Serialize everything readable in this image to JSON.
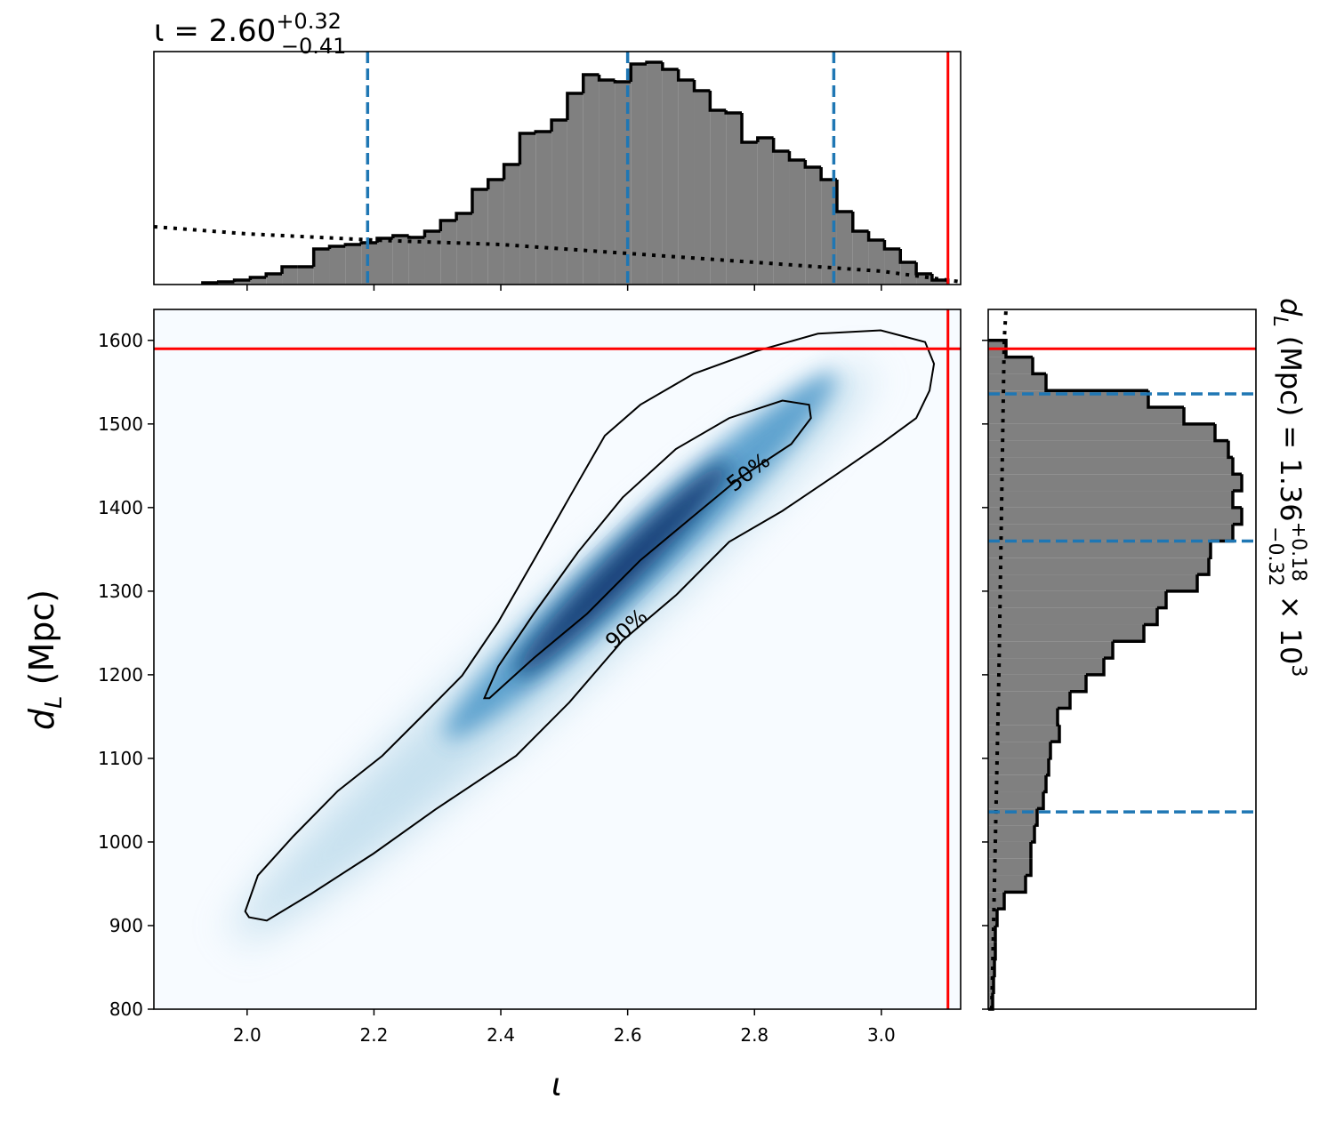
{
  "chart_data": [
    {
      "type": "histogram",
      "orientation": "vertical",
      "title": {
        "main": "ι = 2.60",
        "upper": "+0.32",
        "lower": "−0.41"
      },
      "bins": [
        1.93,
        1.955,
        1.98,
        2.005,
        2.03,
        2.055,
        2.08,
        2.105,
        2.13,
        2.155,
        2.18,
        2.205,
        2.23,
        2.255,
        2.28,
        2.305,
        2.33,
        2.355,
        2.38,
        2.405,
        2.43,
        2.455,
        2.48,
        2.505,
        2.53,
        2.555,
        2.58,
        2.605,
        2.63,
        2.655,
        2.68,
        2.705,
        2.73,
        2.755,
        2.78,
        2.805,
        2.83,
        2.855,
        2.88,
        2.905,
        2.93,
        2.955,
        2.98,
        3.005,
        3.03,
        3.055,
        3.08,
        3.105
      ],
      "counts": [
        2,
        3,
        5,
        8,
        12,
        20,
        20,
        40,
        43,
        45,
        47,
        52,
        55,
        53,
        60,
        72,
        80,
        107,
        118,
        135,
        170,
        172,
        185,
        215,
        236,
        230,
        228,
        248,
        250,
        242,
        230,
        218,
        196,
        193,
        160,
        165,
        150,
        140,
        132,
        118,
        82,
        60,
        50,
        40,
        25,
        12,
        5
      ],
      "color": "#808080",
      "xlim": [
        1.853,
        3.125
      ],
      "ylim": [
        0,
        262
      ],
      "prior": {
        "x": [
          1.853,
          2.0,
          2.2,
          2.4,
          2.6,
          2.8,
          3.0,
          3.125
        ],
        "values": [
          65,
          57,
          50,
          45,
          35,
          25,
          15,
          3
        ]
      },
      "quantiles": [
        2.19,
        2.6,
        2.925
      ],
      "quantile_color": "#1f77b4",
      "truth": 3.105,
      "truth_color": "#ff0000"
    },
    {
      "type": "density",
      "x_label": "ι",
      "y_label": {
        "main": "d",
        "sub": "L",
        "rest": " (Mpc)"
      },
      "xlim": [
        1.853,
        3.125
      ],
      "ylim": [
        800,
        1637
      ],
      "xticks": [
        {
          "value": 2,
          "label": "2.0"
        },
        {
          "value": 2.2,
          "label": "2.2"
        },
        {
          "value": 2.4,
          "label": "2.4"
        },
        {
          "value": 2.6,
          "label": "2.6"
        },
        {
          "value": 2.8,
          "label": "2.8"
        },
        {
          "value": 3,
          "label": "3.0"
        }
      ],
      "yticks": [
        800,
        900,
        1000,
        1100,
        1200,
        1300,
        1400,
        1500,
        1600
      ],
      "contours": [
        {
          "label": "50%",
          "x": [
            2.374,
            2.396,
            2.452,
            2.522,
            2.592,
            2.676,
            2.76,
            2.844,
            2.886,
            2.889,
            2.858,
            2.774,
            2.704,
            2.62,
            2.536,
            2.452,
            2.382
          ],
          "y": [
            1172,
            1210,
            1273,
            1347,
            1412,
            1470,
            1507,
            1528,
            1523,
            1507,
            1476,
            1434,
            1390,
            1337,
            1273,
            1220,
            1172
          ]
        },
        {
          "label": "90%",
          "x": [
            1.997,
            2.017,
            2.073,
            2.143,
            2.213,
            2.283,
            2.339,
            2.396,
            2.452,
            2.508,
            2.564,
            2.62,
            2.704,
            2.802,
            2.9,
            2.999,
            3.069,
            3.083,
            3.076,
            3.055,
            2.999,
            2.928,
            2.844,
            2.76,
            2.676,
            2.592,
            2.508,
            2.424,
            2.297,
            2.199,
            2.101,
            2.031,
            2.003
          ],
          "y": [
            917,
            960,
            1007,
            1061,
            1103,
            1156,
            1199,
            1263,
            1337,
            1412,
            1486,
            1523,
            1560,
            1587,
            1608,
            1612,
            1598,
            1572,
            1540,
            1507,
            1476,
            1439,
            1396,
            1359,
            1295,
            1241,
            1167,
            1103,
            1039,
            986,
            938,
            906,
            910
          ]
        }
      ],
      "truth_x": 3.105,
      "truth_y": 1590,
      "truth_color": "#ff0000"
    },
    {
      "type": "histogram",
      "orientation": "horizontal",
      "title": {
        "main": "d",
        "sub": "L",
        "mid": " (Mpc) = 1.36",
        "upper": "+0.18",
        "lower": "−0.32",
        "times": " × 10",
        "exp": "3"
      },
      "bins": [
        800,
        820,
        840,
        860,
        880,
        900,
        920,
        940,
        960,
        980,
        1000,
        1020,
        1040,
        1060,
        1080,
        1100,
        1120,
        1140,
        1160,
        1180,
        1200,
        1220,
        1240,
        1260,
        1280,
        1300,
        1320,
        1340,
        1360,
        1380,
        1400,
        1420,
        1440,
        1460,
        1480,
        1500,
        1520,
        1540,
        1560,
        1580,
        1600
      ],
      "counts": [
        5,
        6,
        7,
        8,
        8,
        10,
        18,
        42,
        48,
        48,
        52,
        55,
        62,
        65,
        68,
        70,
        80,
        78,
        92,
        110,
        130,
        140,
        175,
        190,
        200,
        235,
        248,
        250,
        275,
        285,
        275,
        285,
        275,
        270,
        255,
        220,
        180,
        65,
        50,
        20
      ],
      "color": "#808080",
      "xlim": [
        0,
        301
      ],
      "ylim": [
        800,
        1637
      ],
      "prior": {
        "y": [
          800,
          1000,
          1200,
          1400,
          1600,
          1637
        ],
        "values": [
          4,
          8,
          12,
          15,
          18,
          20
        ]
      },
      "quantiles": [
        1036,
        1360,
        1536
      ],
      "quantile_color": "#1f77b4",
      "truth": 1590,
      "truth_color": "#ff0000"
    }
  ]
}
